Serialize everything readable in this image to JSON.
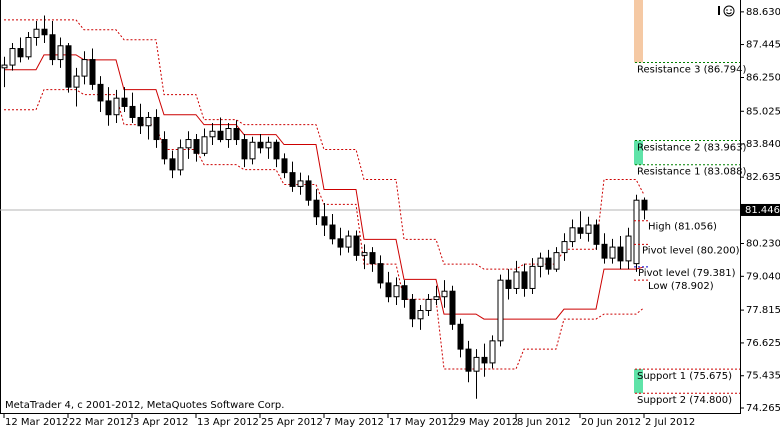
{
  "chart_data": {
    "type": "candlestick",
    "footer": "MetaTrader 4, c 2001-2012, MetaQuotes Software Corp.",
    "categories": [
      "12 Mar 2012",
      null,
      null,
      null,
      null,
      null,
      null,
      null,
      "22 Mar 2012",
      null,
      null,
      null,
      null,
      null,
      null,
      null,
      "3 Apr 2012",
      null,
      null,
      null,
      null,
      null,
      null,
      null,
      "13 Apr 2012",
      null,
      null,
      null,
      null,
      null,
      null,
      null,
      "25 Apr 2012",
      null,
      null,
      null,
      null,
      null,
      null,
      null,
      "7 May 2012",
      null,
      null,
      null,
      null,
      null,
      null,
      null,
      "17 May 2012",
      null,
      null,
      null,
      null,
      null,
      null,
      null,
      "29 May 2012",
      null,
      null,
      null,
      null,
      null,
      null,
      null,
      "8 Jun 2012",
      null,
      null,
      null,
      null,
      null,
      null,
      null,
      "20 Jun 2012",
      null,
      null,
      null,
      null,
      null,
      null,
      null,
      "2 Jul 2012"
    ],
    "ohlc": [
      [
        86.6,
        87.0,
        85.9,
        86.7
      ],
      [
        86.7,
        87.5,
        86.5,
        87.3
      ],
      [
        87.3,
        87.7,
        86.8,
        87.0
      ],
      [
        87.0,
        87.9,
        86.9,
        87.7
      ],
      [
        87.7,
        88.3,
        87.4,
        88.0
      ],
      [
        88.0,
        88.5,
        87.5,
        87.8
      ],
      [
        87.8,
        88.3,
        86.7,
        86.9
      ],
      [
        86.9,
        87.7,
        86.6,
        87.4
      ],
      [
        87.4,
        87.5,
        85.7,
        85.9
      ],
      [
        85.9,
        86.6,
        85.2,
        86.3
      ],
      [
        86.3,
        87.2,
        86.0,
        86.9
      ],
      [
        86.9,
        87.3,
        85.8,
        86.0
      ],
      [
        86.0,
        86.3,
        85.0,
        85.4
      ],
      [
        85.4,
        85.9,
        84.5,
        84.9
      ],
      [
        84.9,
        85.8,
        84.6,
        85.5
      ],
      [
        85.5,
        85.9,
        85.0,
        85.2
      ],
      [
        85.2,
        85.7,
        84.6,
        84.8
      ],
      [
        84.8,
        85.3,
        84.2,
        84.5
      ],
      [
        84.5,
        85.0,
        84.0,
        84.8
      ],
      [
        84.8,
        85.1,
        83.7,
        84.0
      ],
      [
        84.0,
        84.3,
        83.1,
        83.3
      ],
      [
        83.3,
        83.6,
        82.6,
        82.9
      ],
      [
        82.9,
        84.0,
        82.7,
        83.7
      ],
      [
        83.7,
        84.3,
        83.3,
        84.0
      ],
      [
        84.0,
        84.2,
        83.2,
        83.5
      ],
      [
        83.5,
        84.4,
        83.4,
        84.1
      ],
      [
        84.1,
        84.6,
        83.8,
        84.3
      ],
      [
        84.3,
        84.8,
        83.9,
        84.0
      ],
      [
        84.0,
        84.6,
        83.7,
        84.4
      ],
      [
        84.4,
        84.7,
        83.8,
        84.0
      ],
      [
        84.0,
        84.2,
        83.0,
        83.3
      ],
      [
        83.3,
        84.1,
        83.1,
        83.9
      ],
      [
        83.9,
        84.2,
        83.5,
        83.7
      ],
      [
        83.7,
        84.1,
        83.3,
        83.9
      ],
      [
        83.9,
        84.0,
        83.0,
        83.3
      ],
      [
        83.3,
        83.5,
        82.6,
        82.8
      ],
      [
        82.8,
        83.2,
        82.1,
        82.3
      ],
      [
        82.3,
        82.8,
        82.0,
        82.5
      ],
      [
        82.5,
        82.7,
        81.6,
        81.8
      ],
      [
        81.8,
        82.2,
        80.9,
        81.2
      ],
      [
        81.2,
        81.7,
        80.5,
        80.9
      ],
      [
        80.9,
        81.3,
        80.2,
        80.4
      ],
      [
        80.4,
        80.8,
        79.8,
        80.1
      ],
      [
        80.1,
        80.7,
        79.9,
        80.5
      ],
      [
        80.5,
        80.7,
        79.6,
        79.8
      ],
      [
        79.8,
        80.2,
        79.3,
        79.9
      ],
      [
        79.9,
        80.1,
        79.2,
        79.5
      ],
      [
        79.5,
        79.8,
        78.6,
        78.8
      ],
      [
        78.8,
        79.2,
        78.1,
        78.3
      ],
      [
        78.3,
        79.0,
        78.0,
        78.7
      ],
      [
        78.7,
        78.9,
        77.9,
        78.2
      ],
      [
        78.2,
        78.4,
        77.2,
        77.5
      ],
      [
        77.5,
        78.0,
        77.1,
        77.8
      ],
      [
        77.8,
        78.4,
        77.6,
        78.2
      ],
      [
        78.2,
        78.7,
        78.0,
        78.3
      ],
      [
        78.3,
        78.9,
        77.9,
        78.5
      ],
      [
        78.5,
        78.7,
        77.1,
        77.3
      ],
      [
        77.3,
        77.5,
        76.1,
        76.4
      ],
      [
        76.4,
        76.7,
        75.2,
        75.6
      ],
      [
        75.6,
        76.4,
        74.6,
        76.1
      ],
      [
        76.1,
        76.6,
        75.4,
        75.9
      ],
      [
        75.9,
        76.9,
        75.7,
        76.7
      ],
      [
        76.7,
        79.1,
        76.5,
        78.9
      ],
      [
        78.9,
        79.3,
        78.2,
        78.6
      ],
      [
        78.6,
        79.6,
        78.4,
        79.2
      ],
      [
        79.2,
        79.5,
        78.3,
        78.6
      ],
      [
        78.6,
        79.7,
        78.4,
        79.4
      ],
      [
        79.4,
        79.9,
        79.0,
        79.7
      ],
      [
        79.7,
        80.0,
        79.1,
        79.3
      ],
      [
        79.3,
        80.1,
        79.2,
        79.9
      ],
      [
        79.9,
        80.6,
        79.6,
        80.3
      ],
      [
        80.3,
        81.1,
        80.1,
        80.8
      ],
      [
        80.8,
        81.4,
        80.4,
        80.6
      ],
      [
        80.6,
        81.2,
        80.3,
        80.9
      ],
      [
        80.9,
        81.1,
        80.0,
        80.2
      ],
      [
        80.2,
        80.6,
        79.5,
        79.7
      ],
      [
        79.7,
        80.4,
        79.5,
        80.1
      ],
      [
        80.1,
        80.5,
        79.3,
        79.6
      ],
      [
        79.6,
        80.8,
        79.3,
        80.5
      ],
      [
        79.5,
        82.0,
        79.2,
        81.8
      ],
      [
        81.8,
        81.9,
        81.1,
        81.446
      ]
    ],
    "bull_color": "#ffffff",
    "bear_color": "#000000",
    "lines": [
      {
        "color": "#cc0000",
        "dash": false,
        "values": [
          86.53,
          86.53,
          86.53,
          86.53,
          86.53,
          87.07,
          87.07,
          87.07,
          87.07,
          87.07,
          86.89,
          86.89,
          86.89,
          86.89,
          86.89,
          85.81,
          85.81,
          85.81,
          85.81,
          85.81,
          84.9,
          84.9,
          84.9,
          84.9,
          84.9,
          84.54,
          84.54,
          84.54,
          84.54,
          84.54,
          84.18,
          84.18,
          84.18,
          84.18,
          84.18,
          83.82,
          83.82,
          83.82,
          83.82,
          83.82,
          82.19,
          82.19,
          82.19,
          82.19,
          82.19,
          80.38,
          80.38,
          80.38,
          80.38,
          80.38,
          78.93,
          78.93,
          78.93,
          78.93,
          78.93,
          77.67,
          77.67,
          77.67,
          77.67,
          77.67,
          77.49,
          77.49,
          77.49,
          77.49,
          77.49,
          77.49,
          77.49,
          77.49,
          77.49,
          77.49,
          77.85,
          77.85,
          77.85,
          77.85,
          77.85,
          79.3,
          79.3,
          79.3,
          79.3,
          79.3,
          79.38
        ]
      },
      {
        "color": "#cc0000",
        "dash": true,
        "values": [
          88.34,
          88.34,
          88.34,
          88.34,
          88.34,
          88.34,
          88.34,
          88.34,
          88.34,
          88.34,
          87.98,
          87.98,
          87.98,
          87.98,
          87.98,
          87.62,
          87.62,
          87.62,
          87.62,
          87.62,
          85.63,
          85.63,
          85.63,
          85.63,
          85.63,
          84.72,
          84.72,
          84.72,
          84.72,
          84.72,
          84.54,
          84.54,
          84.54,
          84.54,
          84.54,
          84.54,
          84.54,
          84.54,
          84.54,
          84.54,
          83.64,
          83.64,
          83.64,
          83.64,
          83.64,
          82.55,
          82.55,
          82.55,
          82.55,
          82.55,
          80.38,
          80.38,
          80.38,
          80.38,
          80.38,
          79.48,
          79.48,
          79.48,
          79.48,
          79.48,
          79.3,
          79.3,
          79.3,
          79.3,
          79.3,
          79.48,
          79.48,
          79.48,
          79.48,
          79.48,
          80.02,
          80.02,
          80.02,
          80.02,
          80.02,
          82.55,
          82.55,
          82.55,
          82.55,
          82.55,
          82.0
        ]
      },
      {
        "color": "#cc0000",
        "dash": true,
        "values": [
          85.08,
          85.08,
          85.08,
          85.08,
          85.08,
          85.81,
          85.81,
          85.81,
          85.81,
          85.81,
          85.63,
          85.63,
          85.63,
          85.63,
          85.63,
          84.54,
          84.54,
          84.54,
          84.54,
          84.54,
          83.64,
          83.64,
          83.64,
          83.64,
          83.64,
          83.09,
          83.09,
          83.09,
          83.09,
          83.09,
          82.91,
          82.91,
          82.91,
          82.91,
          82.91,
          82.37,
          82.37,
          82.37,
          82.37,
          82.37,
          81.65,
          81.65,
          81.65,
          81.65,
          81.65,
          79.48,
          79.48,
          79.48,
          79.48,
          79.48,
          78.21,
          78.21,
          78.21,
          78.21,
          78.21,
          75.68,
          75.68,
          75.68,
          75.68,
          75.68,
          75.68,
          75.68,
          75.68,
          75.68,
          75.68,
          76.4,
          76.4,
          76.4,
          76.4,
          76.4,
          77.49,
          77.49,
          77.49,
          77.49,
          77.49,
          77.67,
          77.67,
          77.67,
          77.67,
          77.67,
          77.9
        ]
      }
    ],
    "levels": [
      {
        "label": "Resistance 3 (86.794)",
        "value": 86.794,
        "color": "#008000"
      },
      {
        "label": "Resistance 2 (83.963)",
        "value": 83.963,
        "color": "#008000"
      },
      {
        "label": "Resistance 1 (83.088)",
        "value": 83.088,
        "color": "#008000"
      },
      {
        "label": "Support 1 (75.675)",
        "value": 75.675,
        "color": "#cc0000"
      },
      {
        "label": "Support 2 (74.800)",
        "value": 74.8,
        "color": "#cc0000"
      }
    ],
    "pivot_levels": [
      {
        "label": "High (81.056)",
        "value": 81.056,
        "color": "#cc0000"
      },
      {
        "label": "Pivot level (80.200)",
        "value": 80.2,
        "color": "#cc0000"
      },
      {
        "label": "Pivot level (79.381)",
        "value": 79.381,
        "color": "#0000cc"
      },
      {
        "label": "Low (78.902)",
        "value": 78.902,
        "color": "#cc0000"
      }
    ],
    "zone_colors": [
      "#f5c9a4",
      "#5fe3a8",
      "#5fe3a8"
    ],
    "last_price": 81.446,
    "ylim": [
      74.12,
      89.06
    ],
    "yticks": [
      {
        "value": 88.63,
        "label": "88.630"
      },
      {
        "value": 87.445,
        "label": "87.445"
      },
      {
        "value": 86.25,
        "label": "86.250"
      },
      {
        "value": 85.025,
        "label": "85.025"
      },
      {
        "value": 83.84,
        "label": "83.840"
      },
      {
        "value": 82.635,
        "label": "82.635"
      },
      {
        "value": 80.23,
        "label": "80.230"
      },
      {
        "value": 79.04,
        "label": "79.040"
      },
      {
        "value": 77.815,
        "label": "77.815"
      },
      {
        "value": 76.625,
        "label": "76.625"
      },
      {
        "value": 75.435,
        "label": "75.435"
      },
      {
        "value": 74.265,
        "label": "74.265"
      }
    ]
  }
}
